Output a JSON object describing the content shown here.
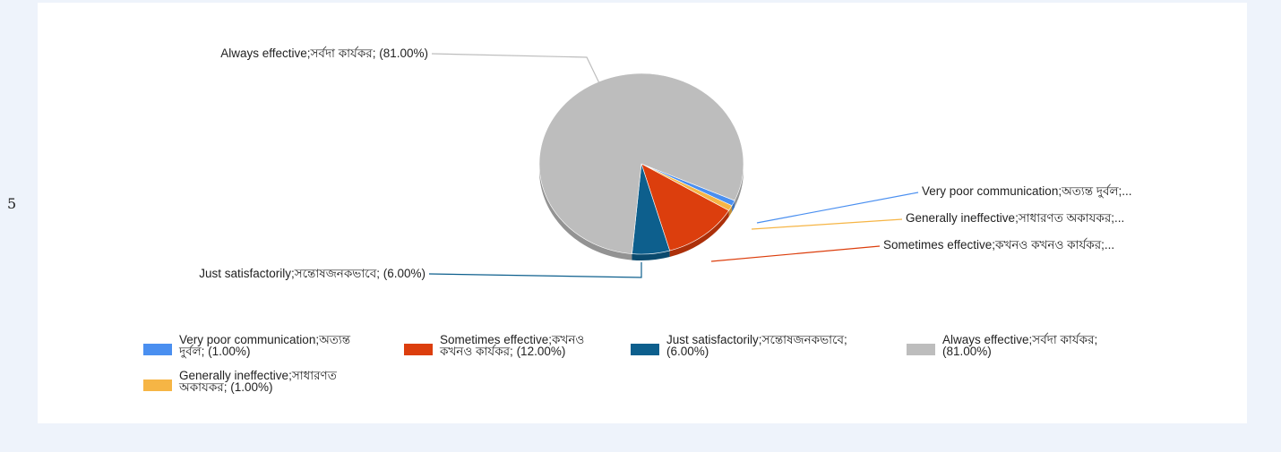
{
  "row_label": "5",
  "chart_data": {
    "type": "pie",
    "style": "3d",
    "slices": [
      {
        "key": "very_poor",
        "label": "Very poor communication;অত্যন্ত দুর্বল; (1.00%)",
        "callout": "Very poor communication;অত্যন্ত দুর্বল;...",
        "value": 1.0,
        "color": "#4a8ff0",
        "legend_lines": [
          "Very poor communication;অত্যন্ত",
          "দুর্বল; (1.00%)"
        ]
      },
      {
        "key": "generally_ineffective",
        "label": "Generally ineffective;সাধারণত অকাযকর; (1.00%)",
        "callout": "Generally ineffective;সাধারণত অকাযকর;...",
        "value": 1.0,
        "color": "#f6b545",
        "legend_lines": [
          "Generally ineffective;সাধারণত",
          "অকাযকর; (1.00%)"
        ]
      },
      {
        "key": "sometimes_effective",
        "label": "Sometimes effective;কখনও কখনও কার্যকর; (12.00%)",
        "callout": "Sometimes effective;কখনও কখনও কার্যকর;...",
        "value": 12.0,
        "color": "#dc3e0d",
        "legend_lines": [
          "Sometimes effective;কখনও",
          "কখনও কার্যকর; (12.00%)"
        ]
      },
      {
        "key": "just_satisfactorily",
        "label": "Just satisfactorily;সন্তোষজনকভাবে; (6.00%)",
        "callout": "Just satisfactorily;সন্তোষজনকভাবে; (6.00%)",
        "value": 6.0,
        "color": "#0d5f8d",
        "legend_lines": [
          "Just satisfactorily;সন্তোষজনকভাবে;",
          "(6.00%)"
        ]
      },
      {
        "key": "always_effective",
        "label": "Always effective;সর্বদা কার্যকর; (81.00%)",
        "callout": "Always effective;সর্বদা কার্যকর; (81.00%)",
        "value": 81.0,
        "color": "#bdbdbd",
        "legend_lines": [
          "Always effective;সর্বদা কার্যকর;",
          "(81.00%)"
        ]
      }
    ],
    "legend_position": "bottom"
  }
}
